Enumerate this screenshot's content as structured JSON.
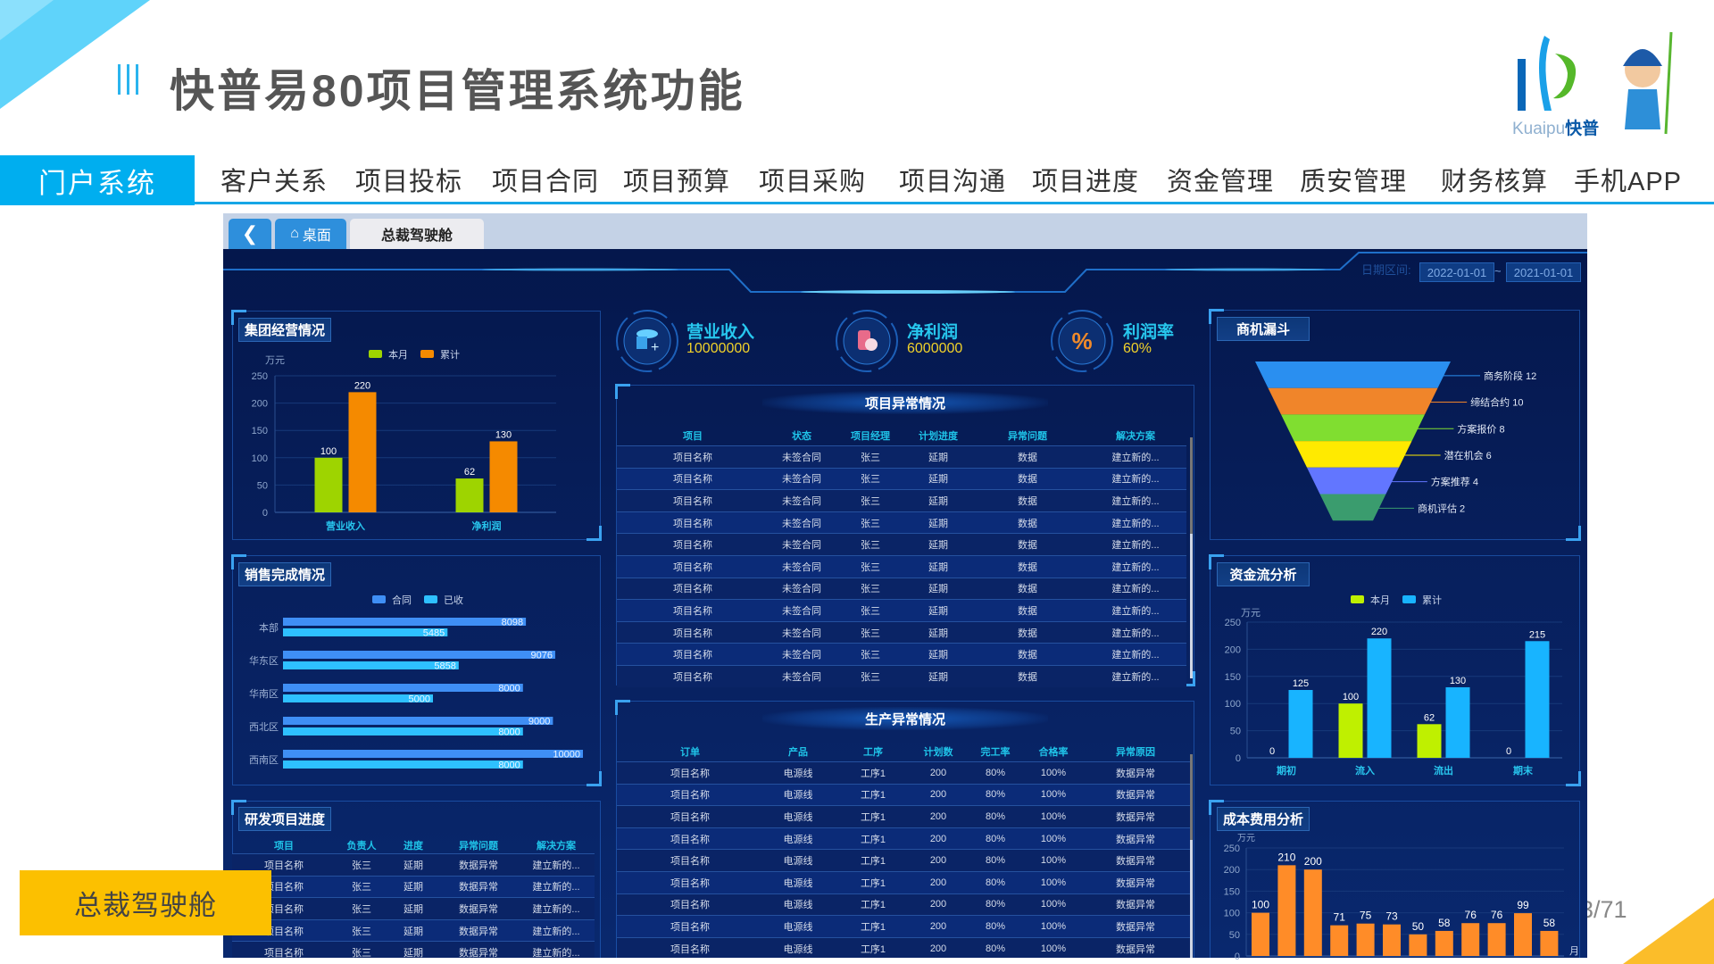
{
  "header": {
    "title": "快普易80项目管理系统功能",
    "bars_icon": "triple-bar-icon",
    "logo_text_latin": "Kuaipu",
    "logo_text_cn": "快普"
  },
  "nav": {
    "active": "门户系统",
    "items": [
      "客户关系",
      "项目投标",
      "项目合同",
      "项目预算",
      "项目采购",
      "项目沟通",
      "项目进度",
      "资金管理",
      "质安管理",
      "财务核算",
      "手机APP"
    ]
  },
  "dashboard": {
    "tabs": {
      "back_icon": "chevron-left-icon",
      "home_icon": "home-icon",
      "home_label": "桌面",
      "active": "总裁驾驶舱"
    },
    "date_range": {
      "label": "日期区间:",
      "start": "2022-01-01",
      "separator": "~",
      "end": "2021-01-01"
    },
    "kpis": [
      {
        "label": "营业收入",
        "value": "10000000",
        "icon": "coin-stack-icon"
      },
      {
        "label": "净利润",
        "value": "6000000",
        "icon": "coins-icon"
      },
      {
        "label": "利润率",
        "value": "60%",
        "icon": "percent-icon"
      }
    ],
    "panels": {
      "group_ops": "集团经营情况",
      "sales": "销售完成情况",
      "rd": "研发项目进度",
      "funnel": "商机漏斗",
      "cashflow": "资金流分析",
      "cost": "成本费用分析"
    },
    "project_anomaly": {
      "title": "项目异常情况",
      "columns": [
        "项目",
        "状态",
        "项目经理",
        "计划进度",
        "异常问题",
        "解决方案"
      ],
      "rows": [
        [
          "项目名称",
          "未签合同",
          "张三",
          "延期",
          "数据",
          "建立新的..."
        ],
        [
          "项目名称",
          "未签合同",
          "张三",
          "延期",
          "数据",
          "建立新的..."
        ],
        [
          "项目名称",
          "未签合同",
          "张三",
          "延期",
          "数据",
          "建立新的..."
        ],
        [
          "项目名称",
          "未签合同",
          "张三",
          "延期",
          "数据",
          "建立新的..."
        ],
        [
          "项目名称",
          "未签合同",
          "张三",
          "延期",
          "数据",
          "建立新的..."
        ],
        [
          "项目名称",
          "未签合同",
          "张三",
          "延期",
          "数据",
          "建立新的..."
        ],
        [
          "项目名称",
          "未签合同",
          "张三",
          "延期",
          "数据",
          "建立新的..."
        ],
        [
          "项目名称",
          "未签合同",
          "张三",
          "延期",
          "数据",
          "建立新的..."
        ],
        [
          "项目名称",
          "未签合同",
          "张三",
          "延期",
          "数据",
          "建立新的..."
        ],
        [
          "项目名称",
          "未签合同",
          "张三",
          "延期",
          "数据",
          "建立新的..."
        ],
        [
          "项目名称",
          "未签合同",
          "张三",
          "延期",
          "数据",
          "建立新的..."
        ]
      ]
    },
    "production_anomaly": {
      "title": "生产异常情况",
      "columns": [
        "订单",
        "产品",
        "工序",
        "计划数",
        "完工率",
        "合格率",
        "异常原因"
      ],
      "rows": [
        [
          "项目名称",
          "电源线",
          "工序1",
          "200",
          "80%",
          "100%",
          "数据异常"
        ],
        [
          "项目名称",
          "电源线",
          "工序1",
          "200",
          "80%",
          "100%",
          "数据异常"
        ],
        [
          "项目名称",
          "电源线",
          "工序1",
          "200",
          "80%",
          "100%",
          "数据异常"
        ],
        [
          "项目名称",
          "电源线",
          "工序1",
          "200",
          "80%",
          "100%",
          "数据异常"
        ],
        [
          "项目名称",
          "电源线",
          "工序1",
          "200",
          "80%",
          "100%",
          "数据异常"
        ],
        [
          "项目名称",
          "电源线",
          "工序1",
          "200",
          "80%",
          "100%",
          "数据异常"
        ],
        [
          "项目名称",
          "电源线",
          "工序1",
          "200",
          "80%",
          "100%",
          "数据异常"
        ],
        [
          "项目名称",
          "电源线",
          "工序1",
          "200",
          "80%",
          "100%",
          "数据异常"
        ],
        [
          "项目名称",
          "电源线",
          "工序1",
          "200",
          "80%",
          "100%",
          "数据异常"
        ]
      ]
    },
    "rd_progress": {
      "columns": [
        "项目",
        "负责人",
        "进度",
        "异常问题",
        "解决方案"
      ],
      "rows": [
        [
          "项目名称",
          "张三",
          "延期",
          "数据异常",
          "建立新的..."
        ],
        [
          "项目名称",
          "张三",
          "延期",
          "数据异常",
          "建立新的..."
        ],
        [
          "项目名称",
          "张三",
          "延期",
          "数据异常",
          "建立新的..."
        ],
        [
          "项目名称",
          "张三",
          "延期",
          "数据异常",
          "建立新的..."
        ],
        [
          "项目名称",
          "张三",
          "延期",
          "数据异常",
          "建立新的..."
        ]
      ]
    }
  },
  "chart_data": [
    {
      "id": "group_ops",
      "type": "bar",
      "title": "集团经营情况",
      "ylabel": "万元",
      "ylim": [
        0,
        250
      ],
      "yticks": [
        0,
        50,
        100,
        150,
        200,
        250
      ],
      "grid": true,
      "legend": "top",
      "categories": [
        "营业收入",
        "净利润"
      ],
      "series": [
        {
          "name": "本月",
          "values": [
            100,
            62
          ],
          "color": "#9ed400"
        },
        {
          "name": "累计",
          "values": [
            220,
            130
          ],
          "color": "#f58a00"
        }
      ]
    },
    {
      "id": "sales",
      "type": "bar",
      "orientation": "horizontal",
      "title": "销售完成情况",
      "xlim": [
        0,
        10000
      ],
      "legend": "top",
      "categories": [
        "本部",
        "华东区",
        "华南区",
        "西北区",
        "西南区"
      ],
      "series": [
        {
          "name": "合同",
          "values": [
            8098,
            9076,
            8000,
            9000,
            10000
          ],
          "color": "#3f8ff5"
        },
        {
          "name": "已收",
          "values": [
            5485,
            5858,
            5000,
            8000,
            8000
          ],
          "color": "#2ec0ff"
        }
      ]
    },
    {
      "id": "funnel",
      "type": "funnel",
      "title": "商机漏斗",
      "stages": [
        {
          "name": "商务阶段",
          "value": 12,
          "color": "#2a8ff0"
        },
        {
          "name": "缔结合约",
          "value": 10,
          "color": "#f0852a"
        },
        {
          "name": "方案报价",
          "value": 8,
          "color": "#80de30"
        },
        {
          "name": "潜在机会",
          "value": 6,
          "color": "#ffea00"
        },
        {
          "name": "方案推荐",
          "value": 4,
          "color": "#6276ff"
        },
        {
          "name": "商机评估",
          "value": 2,
          "color": "#3a9c6e"
        }
      ]
    },
    {
      "id": "cashflow",
      "type": "bar",
      "title": "资金流分析",
      "ylabel": "万元",
      "ylim": [
        0,
        250
      ],
      "yticks": [
        0,
        50,
        100,
        150,
        200,
        250
      ],
      "grid": true,
      "legend": "top",
      "categories": [
        "期初",
        "流入",
        "流出",
        "期末"
      ],
      "series": [
        {
          "name": "本月",
          "values": [
            0,
            100,
            62,
            0
          ],
          "color": "#bff000"
        },
        {
          "name": "累计",
          "values": [
            125,
            220,
            130,
            215
          ],
          "color": "#18b4ff"
        }
      ]
    },
    {
      "id": "cost",
      "type": "bar",
      "title": "成本费用分析",
      "ylabel": "万元",
      "xlabel": "月",
      "ylim": [
        0,
        250
      ],
      "yticks": [
        0,
        50,
        100,
        150,
        200,
        250
      ],
      "grid": true,
      "values": [
        100,
        210,
        200,
        71,
        75,
        73,
        50,
        58,
        76,
        76,
        99,
        58
      ],
      "color": "#ff8c28"
    }
  ],
  "footer": {
    "badge": "总裁驾驶舱",
    "page": "3/71"
  }
}
